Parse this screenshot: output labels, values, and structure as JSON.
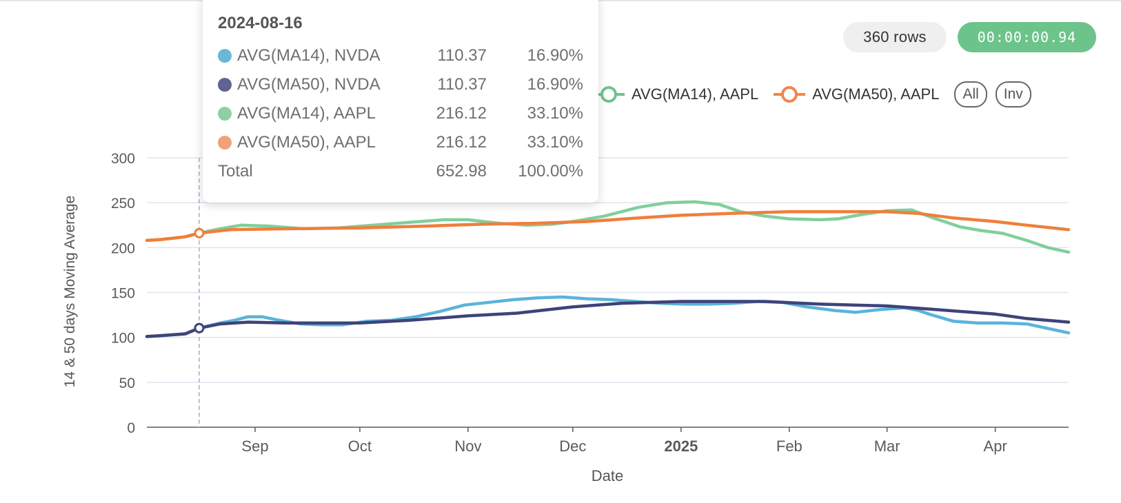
{
  "badges": {
    "rows": "360 rows",
    "timer": "00:00:00.94"
  },
  "legend": {
    "items": [
      {
        "label": "AVG(MA14), AAPL",
        "color": "#6ec48e"
      },
      {
        "label": "AVG(MA50), AAPL",
        "color": "#f2864a"
      }
    ],
    "all_label": "All",
    "inv_label": "Inv"
  },
  "tooltip": {
    "date": "2024-08-16",
    "rows": [
      {
        "name": "AVG(MA14), NVDA",
        "value": "110.37",
        "pct": "16.90%",
        "color": "#6ab7d6"
      },
      {
        "name": "AVG(MA50), NVDA",
        "value": "110.37",
        "pct": "16.90%",
        "color": "#5e6391"
      },
      {
        "name": "AVG(MA14), AAPL",
        "value": "216.12",
        "pct": "33.10%",
        "color": "#8dd0a4"
      },
      {
        "name": "AVG(MA50), AAPL",
        "value": "216.12",
        "pct": "33.10%",
        "color": "#f2a27a"
      }
    ],
    "total": {
      "name": "Total",
      "value": "652.98",
      "pct": "100.00%"
    }
  },
  "chart_data": {
    "type": "line",
    "xlabel": "Date",
    "ylabel": "14 & 50 days Moving Average",
    "xlim": [
      "2024-08-01",
      "2025-04-22"
    ],
    "ylim": [
      0,
      300
    ],
    "yticks": [
      0,
      50,
      100,
      150,
      200,
      250,
      300
    ],
    "xticks": [
      {
        "date": "2024-09-01",
        "label": "Sep",
        "bold": false
      },
      {
        "date": "2024-10-01",
        "label": "Oct",
        "bold": false
      },
      {
        "date": "2024-11-01",
        "label": "Nov",
        "bold": false
      },
      {
        "date": "2024-12-01",
        "label": "Dec",
        "bold": false
      },
      {
        "date": "2025-01-01",
        "label": "2025",
        "bold": true
      },
      {
        "date": "2025-02-01",
        "label": "Feb",
        "bold": false
      },
      {
        "date": "2025-03-01",
        "label": "Mar",
        "bold": false
      },
      {
        "date": "2025-04-01",
        "label": "Apr",
        "bold": false
      }
    ],
    "grid": true,
    "hover_date": "2024-08-16",
    "series": [
      {
        "name": "AVG(MA14), NVDA",
        "color": "#5ab4da",
        "x": [
          "2024-08-01",
          "2024-08-05",
          "2024-08-12",
          "2024-08-16",
          "2024-08-22",
          "2024-08-26",
          "2024-08-30",
          "2024-09-03",
          "2024-09-08",
          "2024-09-14",
          "2024-09-20",
          "2024-09-26",
          "2024-10-03",
          "2024-10-10",
          "2024-10-17",
          "2024-10-24",
          "2024-10-31",
          "2024-11-07",
          "2024-11-14",
          "2024-11-21",
          "2024-11-28",
          "2024-12-05",
          "2024-12-12",
          "2024-12-19",
          "2024-12-26",
          "2025-01-02",
          "2025-01-09",
          "2025-01-16",
          "2025-01-23",
          "2025-01-30",
          "2025-02-06",
          "2025-02-10",
          "2025-02-14",
          "2025-02-20",
          "2025-02-27",
          "2025-03-06",
          "2025-03-10",
          "2025-03-13",
          "2025-03-20",
          "2025-03-27",
          "2025-04-03",
          "2025-04-10",
          "2025-04-16",
          "2025-04-22"
        ],
        "y": [
          101,
          102,
          104,
          110.37,
          116,
          119,
          123,
          123,
          119,
          115,
          114,
          114,
          118,
          119,
          123,
          129,
          136,
          139,
          142,
          144,
          145,
          143,
          142,
          140,
          138,
          137,
          137,
          138,
          140,
          139,
          134,
          132,
          130,
          128,
          131,
          133,
          130,
          126,
          118,
          116,
          116,
          115,
          110,
          105
        ]
      },
      {
        "name": "AVG(MA50), NVDA",
        "color": "#3f4379",
        "x": [
          "2024-08-01",
          "2024-08-05",
          "2024-08-12",
          "2024-08-16",
          "2024-08-22",
          "2024-08-30",
          "2024-09-10",
          "2024-09-20",
          "2024-10-01",
          "2024-10-15",
          "2024-11-01",
          "2024-11-15",
          "2024-12-01",
          "2024-12-15",
          "2025-01-01",
          "2025-01-15",
          "2025-01-25",
          "2025-02-10",
          "2025-03-01",
          "2025-03-15",
          "2025-04-01",
          "2025-04-10",
          "2025-04-22"
        ],
        "y": [
          101,
          102,
          104,
          110.37,
          115,
          117,
          116,
          116,
          116,
          119,
          124,
          127,
          134,
          138,
          140,
          140,
          140,
          137,
          135,
          131,
          126,
          121,
          117
        ]
      },
      {
        "name": "AVG(MA14), AAPL",
        "color": "#80cf9c",
        "x": [
          "2024-08-01",
          "2024-08-05",
          "2024-08-12",
          "2024-08-16",
          "2024-08-22",
          "2024-08-28",
          "2024-09-05",
          "2024-09-15",
          "2024-09-25",
          "2024-10-05",
          "2024-10-15",
          "2024-10-25",
          "2024-11-01",
          "2024-11-10",
          "2024-11-18",
          "2024-11-25",
          "2024-12-01",
          "2024-12-10",
          "2024-12-20",
          "2024-12-28",
          "2025-01-05",
          "2025-01-12",
          "2025-01-18",
          "2025-01-25",
          "2025-02-01",
          "2025-02-10",
          "2025-02-15",
          "2025-02-22",
          "2025-03-01",
          "2025-03-08",
          "2025-03-15",
          "2025-03-22",
          "2025-03-28",
          "2025-04-03",
          "2025-04-10",
          "2025-04-16",
          "2025-04-22"
        ],
        "y": [
          208,
          209,
          212,
          216.12,
          221,
          225,
          224,
          221,
          222,
          225,
          228,
          231,
          231,
          227,
          225,
          226,
          229,
          235,
          245,
          250,
          251,
          248,
          240,
          235,
          232,
          231,
          232,
          237,
          241,
          242,
          232,
          223,
          219,
          216,
          208,
          200,
          195
        ]
      },
      {
        "name": "AVG(MA50), AAPL",
        "color": "#f07e3c",
        "x": [
          "2024-08-01",
          "2024-08-05",
          "2024-08-12",
          "2024-08-16",
          "2024-08-25",
          "2024-09-10",
          "2024-10-01",
          "2024-10-20",
          "2024-11-05",
          "2024-11-20",
          "2024-12-05",
          "2024-12-20",
          "2025-01-01",
          "2025-01-15",
          "2025-02-01",
          "2025-02-15",
          "2025-03-01",
          "2025-03-10",
          "2025-03-20",
          "2025-04-01",
          "2025-04-10",
          "2025-04-22"
        ],
        "y": [
          208,
          209,
          212,
          216.12,
          220,
          221,
          222,
          224,
          226,
          227,
          229,
          233,
          236,
          238,
          240,
          240,
          240,
          238,
          233,
          229,
          225,
          220
        ]
      }
    ]
  }
}
